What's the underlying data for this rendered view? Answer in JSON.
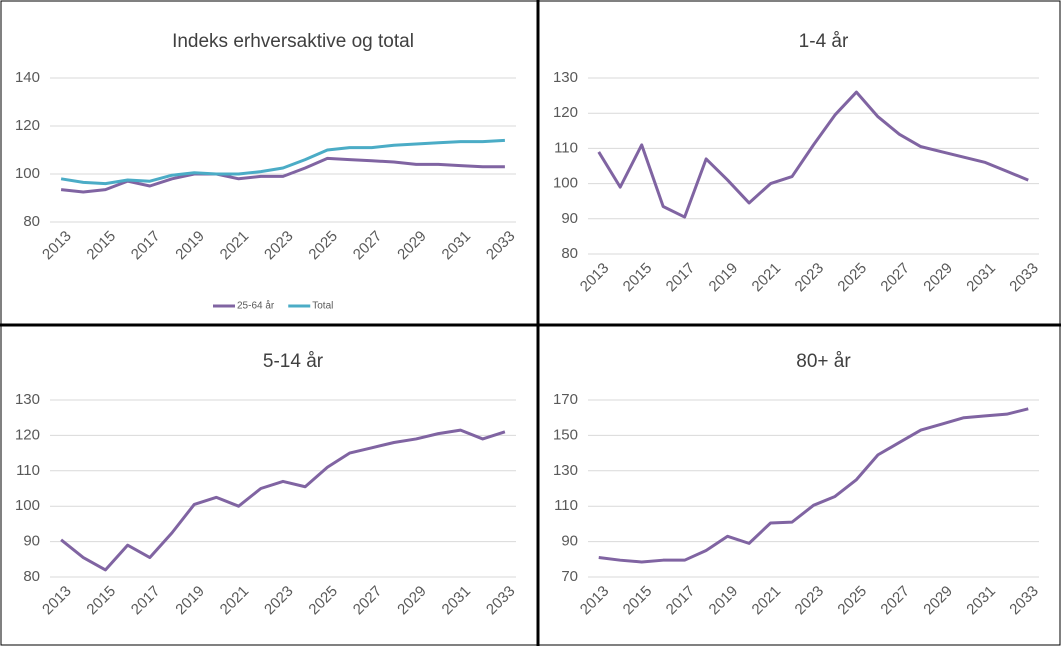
{
  "chart_data": [
    {
      "type": "line",
      "title": "Indeks erhversaktive og total",
      "x": [
        2013,
        2014,
        2015,
        2016,
        2017,
        2018,
        2019,
        2020,
        2021,
        2022,
        2023,
        2024,
        2025,
        2026,
        2027,
        2028,
        2029,
        2030,
        2031,
        2032,
        2033
      ],
      "xlim": [
        2012.5,
        2033.5
      ],
      "xticks": [
        2013,
        2015,
        2017,
        2019,
        2021,
        2023,
        2025,
        2027,
        2029,
        2031,
        2033
      ],
      "ylim": [
        80,
        140
      ],
      "yticks": [
        80,
        100,
        120,
        140
      ],
      "grid": true,
      "legend": "bottom",
      "series": [
        {
          "name": "25-64 år",
          "color": "#8064a2",
          "values": [
            93.5,
            92.5,
            93.5,
            97,
            95,
            98,
            100,
            100,
            98,
            99,
            99,
            102.5,
            106.5,
            106,
            105.5,
            105,
            104,
            104,
            103.5,
            103,
            103
          ]
        },
        {
          "name": "Total",
          "color": "#4bacc6",
          "values": [
            98,
            96.5,
            96,
            97.5,
            97,
            99.5,
            100.5,
            100,
            100,
            101,
            102.5,
            106,
            110,
            111,
            111,
            112,
            112.5,
            113,
            113.5,
            113.5,
            114
          ]
        }
      ]
    },
    {
      "type": "line",
      "title": "1-4 år",
      "x": [
        2013,
        2014,
        2015,
        2016,
        2017,
        2018,
        2019,
        2020,
        2021,
        2022,
        2023,
        2024,
        2025,
        2026,
        2027,
        2028,
        2029,
        2030,
        2031,
        2032,
        2033
      ],
      "xlim": [
        2012.5,
        2033.5
      ],
      "xticks": [
        2013,
        2015,
        2017,
        2019,
        2021,
        2023,
        2025,
        2027,
        2029,
        2031,
        2033
      ],
      "ylim": [
        80,
        130
      ],
      "yticks": [
        80,
        90,
        100,
        110,
        120,
        130
      ],
      "grid": true,
      "series": [
        {
          "color": "#8064a2",
          "values": [
            109,
            99,
            111,
            93.5,
            90.5,
            107,
            101,
            94.5,
            100,
            102,
            111,
            119.5,
            126,
            119,
            114,
            110.5,
            109,
            107.5,
            106,
            103.5,
            101
          ]
        }
      ]
    },
    {
      "type": "line",
      "title": "5-14 år",
      "x": [
        2013,
        2014,
        2015,
        2016,
        2017,
        2018,
        2019,
        2020,
        2021,
        2022,
        2023,
        2024,
        2025,
        2026,
        2027,
        2028,
        2029,
        2030,
        2031,
        2032,
        2033
      ],
      "xlim": [
        2012.5,
        2033.5
      ],
      "xticks": [
        2013,
        2015,
        2017,
        2019,
        2021,
        2023,
        2025,
        2027,
        2029,
        2031,
        2033
      ],
      "ylim": [
        80,
        130
      ],
      "yticks": [
        80,
        90,
        100,
        110,
        120,
        130
      ],
      "grid": true,
      "series": [
        {
          "color": "#8064a2",
          "values": [
            90.5,
            85.5,
            82,
            89,
            85.5,
            92.5,
            100.5,
            102.5,
            100,
            105,
            107,
            105.5,
            111,
            115,
            116.5,
            118,
            119,
            120.5,
            121.5,
            119,
            121
          ]
        }
      ]
    },
    {
      "type": "line",
      "title": "80+ år",
      "x": [
        2013,
        2014,
        2015,
        2016,
        2017,
        2018,
        2019,
        2020,
        2021,
        2022,
        2023,
        2024,
        2025,
        2026,
        2027,
        2028,
        2029,
        2030,
        2031,
        2032,
        2033
      ],
      "xlim": [
        2012.5,
        2033.5
      ],
      "xticks": [
        2013,
        2015,
        2017,
        2019,
        2021,
        2023,
        2025,
        2027,
        2029,
        2031,
        2033
      ],
      "ylim": [
        70,
        170
      ],
      "yticks": [
        70,
        90,
        110,
        130,
        150,
        170
      ],
      "grid": true,
      "series": [
        {
          "color": "#8064a2",
          "values": [
            81,
            79.5,
            78.5,
            79.5,
            79.5,
            85,
            93,
            89,
            100.5,
            101,
            110.5,
            115.5,
            125,
            139,
            146,
            153,
            156.5,
            160,
            161,
            162,
            165
          ]
        }
      ]
    }
  ]
}
